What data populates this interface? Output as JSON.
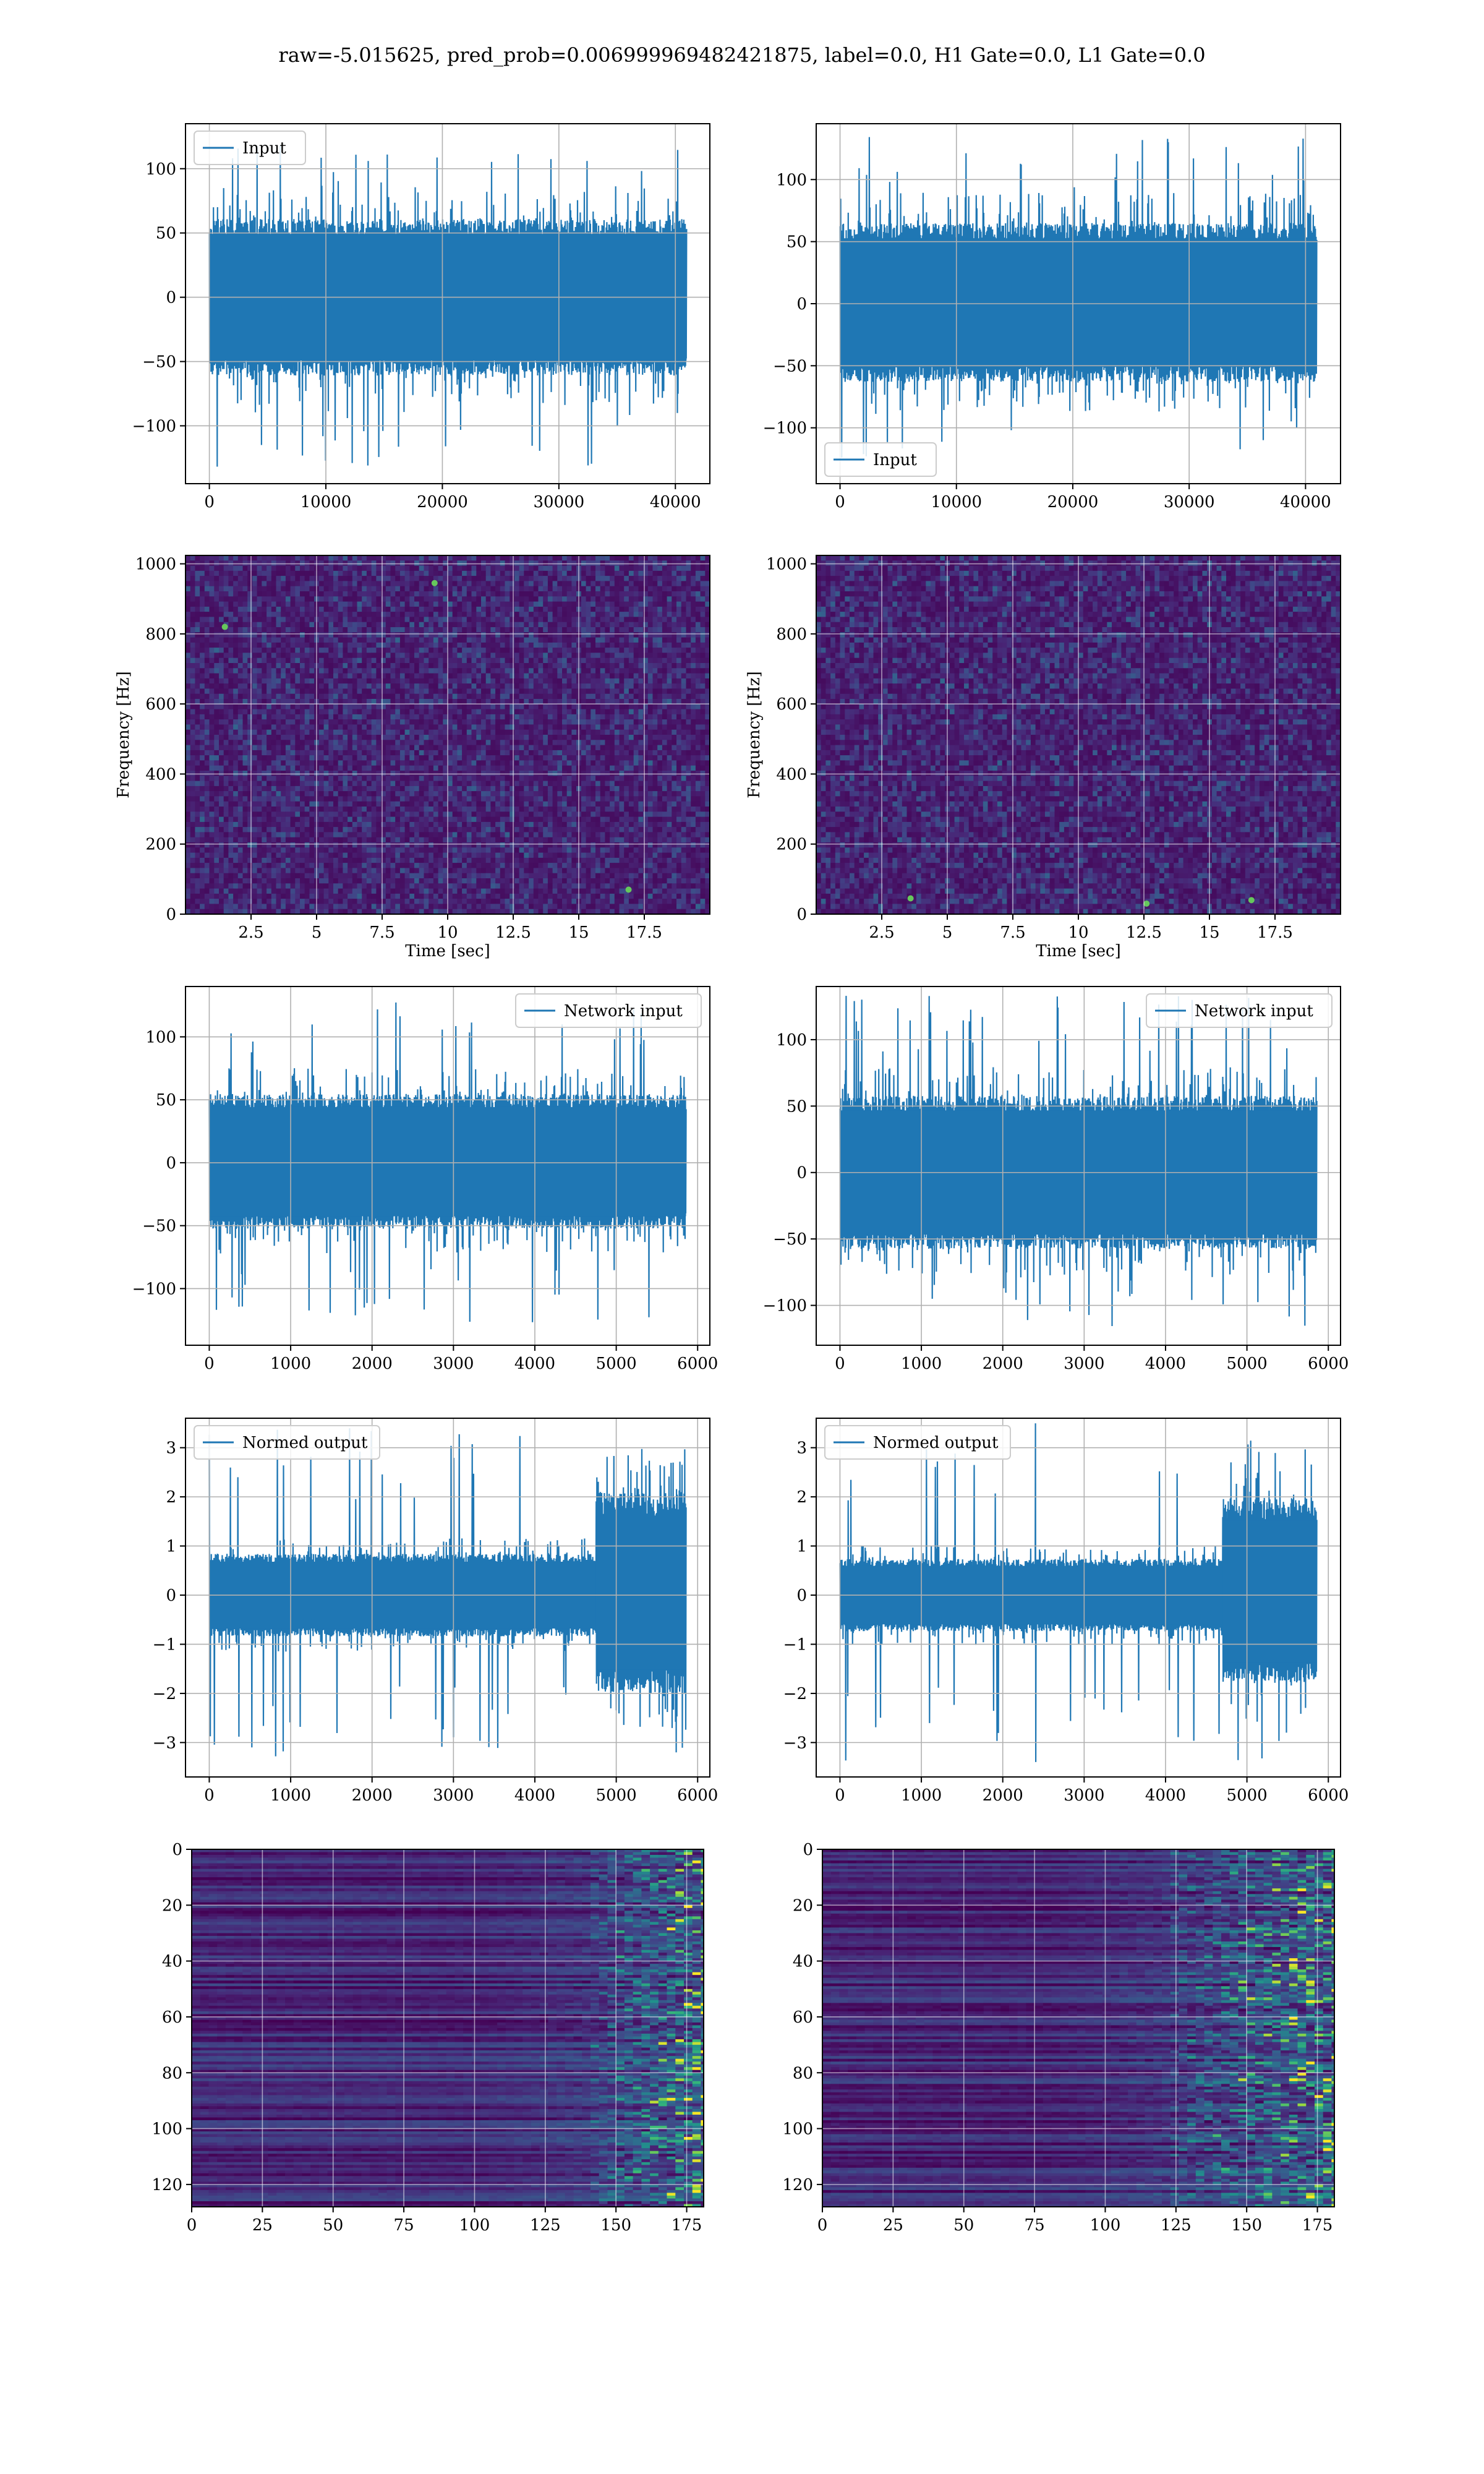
{
  "figure": {
    "suptitle": "raw=-5.015625, pred_prob=0.006999969482421875, label=0.0, H1 Gate=0.0, L1 Gate=0.0"
  },
  "chart_data": [
    {
      "id": "h1-input",
      "type": "line",
      "row": 1,
      "col": 1,
      "legend": "Input",
      "legend_loc": "upper-left",
      "xlim": [
        -2048,
        42958
      ],
      "ylim": [
        -145,
        135
      ],
      "xticks": [
        0,
        10000,
        20000,
        30000,
        40000
      ],
      "yticks": [
        -100,
        -50,
        0,
        50,
        100
      ],
      "color": "#1f77b4",
      "series": [
        {
          "name": "Input",
          "n": 40960,
          "x_range": [
            0,
            40960
          ],
          "envelope_typ": [
            -58,
            58
          ],
          "envelope_max": [
            -132,
            118
          ]
        }
      ]
    },
    {
      "id": "l1-input",
      "type": "line",
      "row": 1,
      "col": 2,
      "legend": "Input",
      "legend_loc": "lower-left",
      "xlim": [
        -2048,
        43008
      ],
      "ylim": [
        -145,
        145
      ],
      "xticks": [
        0,
        10000,
        20000,
        30000,
        40000
      ],
      "yticks": [
        -100,
        -50,
        0,
        50,
        100
      ],
      "color": "#1f77b4",
      "series": [
        {
          "name": "Input",
          "n": 40960,
          "x_range": [
            0,
            40960
          ],
          "envelope_typ": [
            -60,
            62
          ],
          "envelope_max": [
            -130,
            135
          ]
        }
      ]
    },
    {
      "id": "h1-spectrogram",
      "type": "heatmap",
      "row": 2,
      "col": 1,
      "xlabel": "Time [sec]",
      "ylabel": "Frequency [Hz]",
      "xlim": [
        0,
        20
      ],
      "ylim": [
        0,
        1024
      ],
      "xticks": [
        2.5,
        5.0,
        7.5,
        10.0,
        12.5,
        15.0,
        17.5
      ],
      "yticks": [
        0,
        200,
        400,
        600,
        800,
        1000
      ],
      "colormap": "viridis",
      "hotspots": [
        {
          "t": 16.9,
          "f": 70
        },
        {
          "t": 9.5,
          "f": 945
        },
        {
          "t": 1.5,
          "f": 820
        }
      ]
    },
    {
      "id": "l1-spectrogram",
      "type": "heatmap",
      "row": 2,
      "col": 2,
      "xlabel": "Time [sec]",
      "ylabel": "Frequency [Hz]",
      "xlim": [
        0,
        20
      ],
      "ylim": [
        0,
        1024
      ],
      "xticks": [
        2.5,
        5.0,
        7.5,
        10.0,
        12.5,
        15.0,
        17.5
      ],
      "yticks": [
        0,
        200,
        400,
        600,
        800,
        1000
      ],
      "colormap": "viridis",
      "hotspots": [
        {
          "t": 12.6,
          "f": 30
        },
        {
          "t": 3.6,
          "f": 45
        },
        {
          "t": 16.6,
          "f": 40
        }
      ]
    },
    {
      "id": "h1-network-input",
      "type": "line",
      "row": 3,
      "col": 1,
      "legend": "Network input",
      "legend_loc": "upper-right",
      "xlim": [
        -292,
        6150
      ],
      "ylim": [
        -145,
        140
      ],
      "xticks": [
        0,
        1000,
        2000,
        3000,
        4000,
        5000,
        6000
      ],
      "yticks": [
        -100,
        -50,
        0,
        50,
        100
      ],
      "color": "#1f77b4",
      "series": [
        {
          "name": "Network input",
          "n": 5858,
          "x_range": [
            0,
            5858
          ],
          "envelope_typ": [
            -50,
            52
          ],
          "envelope_max": [
            -132,
            130
          ]
        }
      ]
    },
    {
      "id": "l1-network-input",
      "type": "line",
      "row": 3,
      "col": 2,
      "legend": "Network input",
      "legend_loc": "upper-right",
      "xlim": [
        -292,
        6150
      ],
      "ylim": [
        -130,
        140
      ],
      "xticks": [
        0,
        1000,
        2000,
        3000,
        4000,
        5000,
        6000
      ],
      "yticks": [
        -100,
        -50,
        0,
        50,
        100
      ],
      "color": "#1f77b4",
      "series": [
        {
          "name": "Network input",
          "n": 5858,
          "x_range": [
            0,
            5858
          ],
          "envelope_typ": [
            -55,
            55
          ],
          "envelope_max": [
            -118,
            133
          ]
        }
      ]
    },
    {
      "id": "h1-normed-output",
      "type": "line",
      "row": 4,
      "col": 1,
      "legend": "Normed output",
      "legend_loc": "upper-left",
      "xlim": [
        -292,
        6150
      ],
      "ylim": [
        -3.7,
        3.6
      ],
      "xticks": [
        0,
        1000,
        2000,
        3000,
        4000,
        5000,
        6000
      ],
      "yticks": [
        -3,
        -2,
        -1,
        0,
        1,
        2,
        3
      ],
      "color": "#1f77b4",
      "series": [
        {
          "name": "Normed output",
          "n": 5858,
          "x_range": [
            0,
            5858
          ],
          "envelope_typ": [
            -0.8,
            0.8
          ],
          "envelope_tail_after_x": 4750,
          "envelope_tail": [
            -1.9,
            2.0
          ],
          "envelope_max": [
            -3.4,
            3.4
          ]
        }
      ]
    },
    {
      "id": "l1-normed-output",
      "type": "line",
      "row": 4,
      "col": 2,
      "legend": "Normed output",
      "legend_loc": "upper-left",
      "xlim": [
        -292,
        6150
      ],
      "ylim": [
        -3.7,
        3.6
      ],
      "xticks": [
        0,
        1000,
        2000,
        3000,
        4000,
        5000,
        6000
      ],
      "yticks": [
        -3,
        -2,
        -1,
        0,
        1,
        2,
        3
      ],
      "color": "#1f77b4",
      "series": [
        {
          "name": "Normed output",
          "n": 5858,
          "x_range": [
            0,
            5858
          ],
          "envelope_typ": [
            -0.7,
            0.7
          ],
          "envelope_tail_after_x": 4700,
          "envelope_tail": [
            -1.7,
            1.9
          ],
          "envelope_max": [
            -3.4,
            3.5
          ]
        }
      ]
    },
    {
      "id": "h1-feature-map",
      "type": "heatmap",
      "row": 5,
      "col": 1,
      "xlim": [
        0,
        181
      ],
      "ylim": [
        128,
        0
      ],
      "xticks": [
        0,
        25,
        50,
        75,
        100,
        125,
        150,
        175
      ],
      "yticks": [
        0,
        20,
        40,
        60,
        80,
        100,
        120
      ],
      "colormap": "viridis",
      "shape": [
        128,
        181
      ],
      "active_after_col": 140
    },
    {
      "id": "l1-feature-map",
      "type": "heatmap",
      "row": 5,
      "col": 2,
      "xlim": [
        0,
        181
      ],
      "ylim": [
        128,
        0
      ],
      "xticks": [
        0,
        25,
        50,
        75,
        100,
        125,
        150,
        175
      ],
      "yticks": [
        0,
        20,
        40,
        60,
        80,
        100,
        120
      ],
      "colormap": "viridis",
      "shape": [
        128,
        181
      ],
      "active_after_col": 120
    }
  ]
}
